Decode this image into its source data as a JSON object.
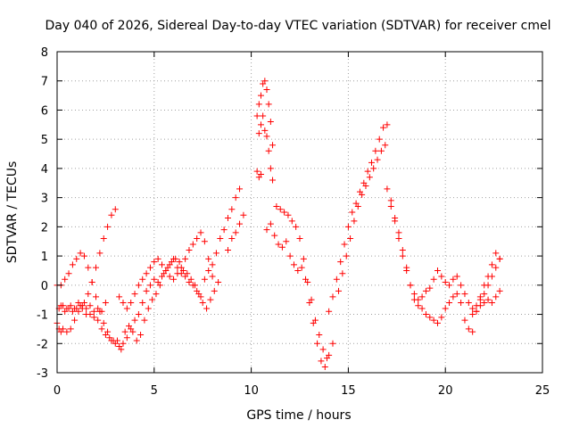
{
  "chart_data": {
    "type": "scatter",
    "title": "Day 040 of 2026, Sidereal Day-to-day VTEC variation (SDTVAR) for receiver cmel",
    "xlabel": "GPS time / hours",
    "ylabel": "SDTVAR / TECUs",
    "xlim": [
      0,
      25
    ],
    "ylim": [
      -3,
      8
    ],
    "xticks": [
      "0",
      "5",
      "10",
      "15",
      "20",
      "25"
    ],
    "yticks": [
      "-3",
      "-2",
      "-1",
      "0",
      "1",
      "2",
      "3",
      "4",
      "5",
      "6",
      "7",
      "8"
    ],
    "grid": true,
    "legend": "none",
    "marker": "plus",
    "color": "#ff0000",
    "series": [
      {
        "x": [
          0.0,
          0.1,
          0.2,
          0.3,
          0.5,
          0.7,
          0.9,
          1.1,
          1.3,
          1.5,
          1.7,
          1.9,
          2.1,
          2.3,
          2.5,
          0.0,
          0.2,
          0.4,
          0.6,
          0.8,
          1.0,
          1.2,
          1.4,
          1.6,
          1.8,
          2.0,
          2.2,
          2.4,
          2.6,
          2.8,
          3.0,
          3.2,
          3.4,
          3.6,
          3.8,
          4.0,
          4.2,
          4.4,
          4.6,
          4.8,
          5.0,
          5.2,
          5.4,
          5.6,
          5.8,
          6.0,
          6.2,
          6.4,
          6.6,
          6.8,
          7.0,
          7.2,
          7.4,
          7.6,
          7.8,
          8.0,
          8.2,
          8.4,
          8.6,
          8.8,
          9.0,
          9.2,
          9.4,
          0.1,
          0.3,
          0.5,
          0.7,
          0.9,
          1.1,
          1.3,
          1.5,
          1.7,
          1.9,
          2.1,
          2.3,
          2.5,
          2.7,
          2.9,
          3.1,
          3.3,
          3.5,
          3.7,
          3.9,
          4.1,
          4.3,
          4.5,
          4.7,
          4.9,
          5.1,
          5.3,
          5.5,
          5.7,
          5.9,
          6.1,
          6.3,
          6.5,
          6.7,
          6.9,
          7.1,
          7.3,
          7.5,
          7.7,
          7.9,
          8.1,
          8.3,
          0.2,
          0.4,
          0.6,
          0.8,
          1.0,
          1.2,
          1.4,
          1.6,
          1.8,
          2.0,
          2.2,
          2.4,
          2.6,
          2.8,
          3.0,
          3.2,
          3.4,
          3.6,
          3.8,
          4.0,
          4.2,
          4.4,
          4.6,
          4.8,
          5.0,
          5.2,
          5.4,
          5.6,
          5.8,
          6.0,
          6.2,
          6.4,
          6.6,
          6.8,
          7.0,
          7.2,
          7.4,
          7.6,
          7.8,
          8.0,
          8.8,
          9.0,
          9.2,
          9.4,
          9.6,
          10.3,
          10.4,
          10.5,
          10.6,
          10.7,
          10.8,
          10.9,
          11.0,
          11.1,
          10.4,
          10.5,
          10.6,
          10.7,
          10.8,
          10.9,
          11.0,
          11.1,
          10.3,
          10.4,
          10.5,
          10.8,
          11.0,
          11.2,
          11.4,
          11.6,
          11.8,
          12.0,
          12.2,
          12.4,
          12.6,
          12.8,
          13.0,
          13.2,
          13.4,
          13.6,
          13.8,
          14.0,
          14.2,
          11.3,
          11.5,
          11.7,
          11.9,
          12.1,
          12.3,
          12.5,
          12.7,
          12.9,
          13.1,
          13.3,
          13.5,
          13.7,
          13.9,
          14.0,
          14.2,
          14.4,
          14.6,
          14.8,
          15.0,
          15.2,
          15.4,
          15.6,
          15.8,
          16.0,
          16.2,
          16.4,
          16.6,
          16.8,
          17.0,
          14.5,
          14.7,
          14.9,
          15.1,
          15.3,
          15.5,
          15.7,
          15.9,
          16.1,
          16.3,
          16.5,
          16.7,
          16.9,
          17.0,
          17.2,
          17.4,
          17.6,
          17.8,
          18.0,
          18.2,
          18.4,
          18.6,
          18.8,
          19.0,
          19.2,
          19.4,
          19.6,
          19.8,
          20.0,
          20.2,
          20.4,
          20.6,
          20.8,
          21.0,
          21.2,
          21.4,
          21.6,
          21.8,
          22.0,
          22.2,
          22.4,
          22.6,
          22.8,
          17.2,
          17.4,
          17.6,
          17.8,
          18.0,
          18.2,
          18.4,
          18.6,
          18.8,
          19.0,
          19.2,
          19.4,
          19.6,
          19.8,
          20.0,
          20.2,
          20.4,
          20.6,
          20.8,
          21.0,
          21.2,
          21.4,
          21.6,
          21.8,
          22.0,
          22.2,
          22.4,
          22.6,
          22.8,
          21.4,
          21.6,
          21.8,
          22.0,
          22.2,
          22.4,
          22.6,
          22.8
        ],
        "y": [
          -1.3,
          -1.5,
          -1.6,
          -1.5,
          -1.6,
          -1.5,
          -1.2,
          -0.9,
          -0.7,
          -0.8,
          -0.7,
          -0.9,
          -0.8,
          -0.9,
          -0.6,
          0.0,
          0.0,
          0.2,
          0.4,
          0.7,
          0.9,
          1.1,
          1.0,
          0.6,
          0.1,
          -0.4,
          -0.9,
          -1.3,
          -1.6,
          -1.9,
          -2.0,
          -2.1,
          -2.0,
          -1.8,
          -1.5,
          -1.2,
          -1.0,
          -0.6,
          -0.2,
          0.0,
          0.2,
          0.1,
          0.3,
          0.5,
          0.7,
          0.9,
          0.6,
          0.4,
          0.3,
          0.1,
          0.0,
          -0.2,
          -0.4,
          0.2,
          0.5,
          0.7,
          1.1,
          1.6,
          1.9,
          2.3,
          2.6,
          3.0,
          3.3,
          -0.8,
          -0.7,
          -0.8,
          -0.7,
          -0.8,
          -0.6,
          -0.8,
          -1.0,
          -1.0,
          -1.1,
          -1.2,
          -1.5,
          -1.7,
          -1.8,
          -1.9,
          -1.9,
          -2.2,
          -1.6,
          -1.4,
          -1.6,
          -1.9,
          -1.7,
          -1.2,
          -0.8,
          -0.5,
          -0.3,
          0.0,
          0.4,
          0.6,
          0.8,
          0.9,
          0.8,
          0.5,
          0.4,
          0.2,
          0.0,
          -0.3,
          -0.6,
          -0.8,
          -0.5,
          -0.2,
          0.1,
          -0.7,
          -0.9,
          -0.8,
          -0.9,
          -0.8,
          -0.7,
          -0.6,
          -0.3,
          0.1,
          0.6,
          1.1,
          1.6,
          2.0,
          2.4,
          2.6,
          -0.4,
          -0.6,
          -0.8,
          -0.6,
          -0.3,
          0.0,
          0.2,
          0.4,
          0.6,
          0.8,
          0.9,
          0.7,
          0.5,
          0.3,
          0.2,
          0.4,
          0.6,
          0.9,
          1.2,
          1.4,
          1.6,
          1.8,
          1.5,
          0.9,
          0.3,
          1.2,
          1.6,
          1.8,
          2.1,
          2.4,
          5.8,
          6.2,
          6.5,
          6.9,
          7.0,
          6.7,
          6.2,
          5.6,
          4.8,
          5.2,
          5.5,
          5.8,
          5.3,
          5.1,
          4.6,
          4.0,
          3.6,
          3.9,
          3.7,
          3.8,
          1.9,
          2.1,
          1.7,
          1.4,
          1.3,
          1.5,
          1.0,
          0.7,
          0.5,
          0.6,
          0.2,
          -0.6,
          -1.3,
          -2.0,
          -2.6,
          -2.8,
          -2.4,
          -2.0,
          2.7,
          2.6,
          2.5,
          2.4,
          2.2,
          2.0,
          1.6,
          0.9,
          0.1,
          -0.5,
          -1.2,
          -1.7,
          -2.2,
          -2.5,
          -0.9,
          -0.4,
          0.2,
          0.8,
          1.4,
          2.0,
          2.5,
          2.8,
          3.2,
          3.5,
          3.9,
          4.2,
          4.6,
          5.0,
          5.4,
          5.5,
          -0.2,
          0.4,
          1.0,
          1.6,
          2.2,
          2.7,
          3.1,
          3.4,
          3.7,
          4.0,
          4.3,
          4.6,
          4.8,
          3.3,
          2.9,
          2.3,
          1.8,
          1.2,
          0.6,
          0.0,
          -0.5,
          -0.7,
          -0.8,
          -1.0,
          -1.1,
          -1.2,
          -1.3,
          -1.1,
          -0.8,
          -0.6,
          -0.4,
          -0.3,
          -0.6,
          -1.2,
          -1.5,
          -1.6,
          -0.9,
          -0.4,
          0.0,
          0.3,
          0.7,
          1.1,
          0.9,
          2.7,
          2.2,
          1.6,
          1.0,
          0.5,
          0.0,
          -0.3,
          -0.5,
          -0.4,
          -0.2,
          -0.1,
          0.2,
          0.5,
          0.3,
          0.1,
          0.0,
          0.2,
          0.3,
          0.0,
          -0.3,
          -0.6,
          -0.8,
          -0.9,
          -0.7,
          -0.6,
          -0.5,
          -0.6,
          -0.4,
          -0.2,
          -1.0,
          -0.7,
          -0.5,
          -0.3,
          0.0,
          0.3,
          0.6,
          0.9
        ]
      }
    ]
  }
}
